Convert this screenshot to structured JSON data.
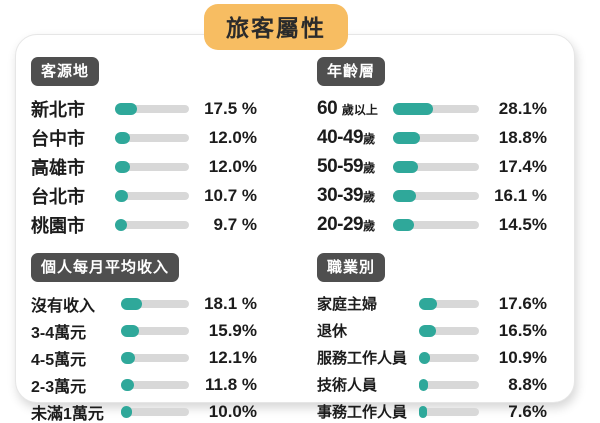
{
  "page": {
    "title": "旅客屬性"
  },
  "colors": {
    "bar_fill_teal": "#2fa89a",
    "bar_track_gray": "#d8d8d8",
    "header_badge_gray": "#4f4f4f",
    "title_badge_orange": "#f7bd62",
    "text_ink": "#1c1c1c",
    "card_background": "#ffffff"
  },
  "chart_data": [
    {
      "type": "bar",
      "title": "客源地",
      "categories": [
        {
          "main": "新北市",
          "suffix": ""
        },
        {
          "main": "台中市",
          "suffix": ""
        },
        {
          "main": "高雄市",
          "suffix": ""
        },
        {
          "main": "台北市",
          "suffix": ""
        },
        {
          "main": "桃園市",
          "suffix": ""
        }
      ],
      "values": [
        17.5,
        12.0,
        12.0,
        10.7,
        9.7
      ],
      "value_labels": [
        "17.5 %",
        "12.0%",
        "12.0%",
        "10.7 %",
        "9.7 %"
      ],
      "xlabel": "",
      "ylabel": "",
      "xlim": [
        0,
        60
      ],
      "legend": false,
      "grid": false
    },
    {
      "type": "bar",
      "title": "年齡層",
      "categories": [
        {
          "main": "60 ",
          "suffix": "歲以上"
        },
        {
          "main": "40-49",
          "suffix": "歲"
        },
        {
          "main": "50-59",
          "suffix": "歲"
        },
        {
          "main": "30-39",
          "suffix": "歲"
        },
        {
          "main": "20-29",
          "suffix": "歲"
        }
      ],
      "values": [
        28.1,
        18.8,
        17.4,
        16.1,
        14.5
      ],
      "value_labels": [
        "28.1%",
        "18.8%",
        "17.4%",
        "16.1 %",
        "14.5%"
      ],
      "xlabel": "",
      "ylabel": "",
      "xlim": [
        0,
        60
      ],
      "legend": false,
      "grid": false
    },
    {
      "type": "bar",
      "title": "個人每月平均收入",
      "categories": [
        {
          "main": "沒有收入",
          "suffix": ""
        },
        {
          "main": "3-4萬元",
          "suffix": ""
        },
        {
          "main": "4-5萬元",
          "suffix": ""
        },
        {
          "main": "2-3萬元",
          "suffix": ""
        },
        {
          "main": "未滿1萬元",
          "suffix": ""
        }
      ],
      "values": [
        18.1,
        15.9,
        12.1,
        11.8,
        10.0
      ],
      "value_labels": [
        "18.1 %",
        "15.9%",
        "12.1%",
        "11.8 %",
        "10.0%"
      ],
      "xlabel": "",
      "ylabel": "",
      "xlim": [
        0,
        60
      ],
      "legend": false,
      "grid": false
    },
    {
      "type": "bar",
      "title": "職業別",
      "categories": [
        {
          "main": "家庭主婦",
          "suffix": ""
        },
        {
          "main": "退休",
          "suffix": ""
        },
        {
          "main": "服務工作人員",
          "suffix": ""
        },
        {
          "main": "技術人員",
          "suffix": ""
        },
        {
          "main": "事務工作人員",
          "suffix": ""
        }
      ],
      "values": [
        17.6,
        16.5,
        10.9,
        8.8,
        7.6
      ],
      "value_labels": [
        "17.6%",
        "16.5%",
        "10.9%",
        "8.8%",
        "7.6%"
      ],
      "xlabel": "",
      "ylabel": "",
      "xlim": [
        0,
        60
      ],
      "legend": false,
      "grid": false
    }
  ]
}
